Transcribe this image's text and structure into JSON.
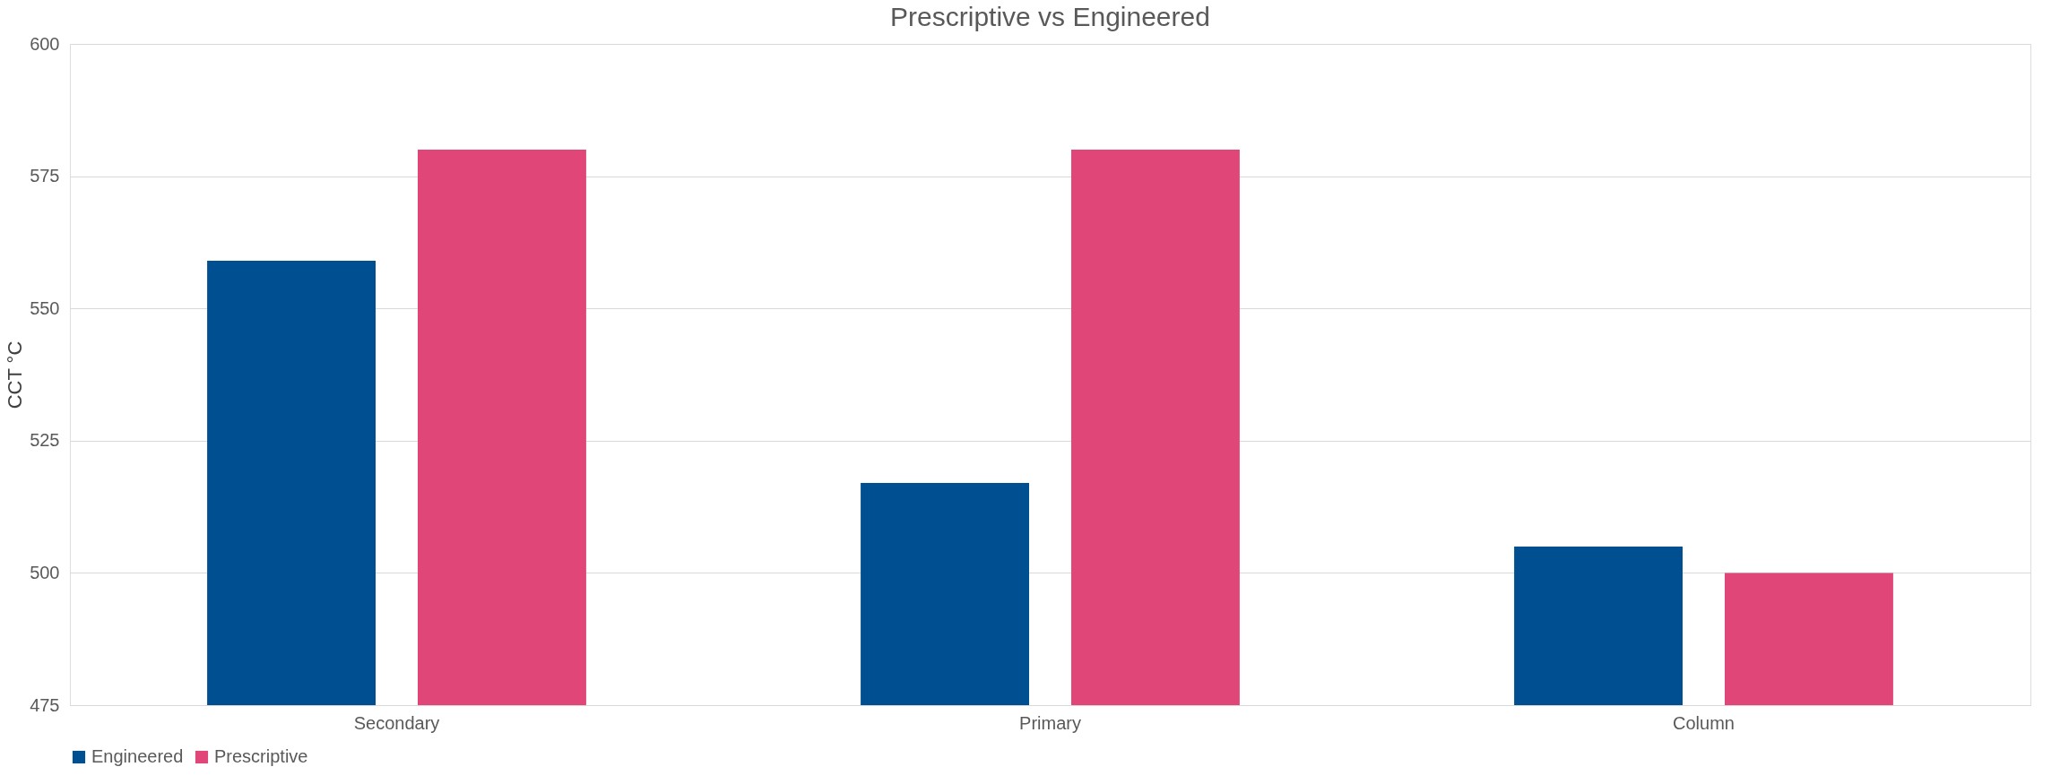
{
  "chart_data": {
    "type": "bar",
    "title": "Prescriptive vs Engineered",
    "ylabel": "CCT °C",
    "categories": [
      "Secondary",
      "Primary",
      "Column"
    ],
    "series": [
      {
        "name": "Engineered",
        "color": "#005091",
        "values": [
          559,
          517,
          505
        ]
      },
      {
        "name": "Prescriptive",
        "color": "#e04677",
        "values": [
          580,
          580,
          500
        ]
      }
    ],
    "ylim": [
      475,
      600
    ],
    "yticks": [
      475,
      500,
      525,
      550,
      575,
      600
    ],
    "grid": "y",
    "legend": "bottom"
  }
}
